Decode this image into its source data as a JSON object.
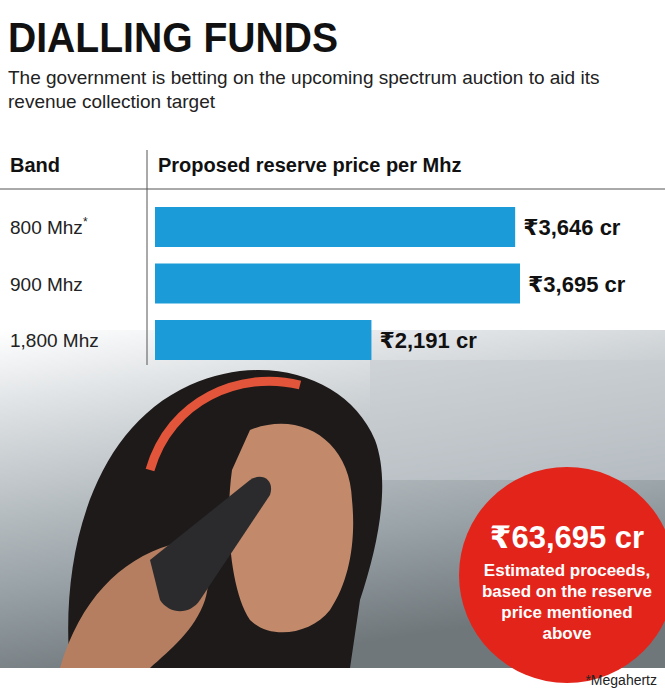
{
  "chart_data": {
    "type": "bar",
    "orientation": "horizontal",
    "title": "DIALLING FUNDS",
    "subtitle": "The government is betting on the upcoming spectrum auction to aid its revenue collection target",
    "category_header": "Band",
    "value_header": "Proposed reserve price per Mhz",
    "categories": [
      "800 Mhz*",
      "900 Mhz",
      "1,800 Mhz"
    ],
    "values": [
      3646,
      3695,
      2191
    ],
    "value_labels": [
      "₹3,646 cr",
      "₹3,695 cr",
      "₹2,191 cr"
    ],
    "color": "#1b9bd7",
    "xlim": [
      0,
      3700
    ],
    "data_labels": true,
    "tick_labels": false,
    "grid": false,
    "annotations": [
      "₹63,695 cr",
      "Estimated proceeds, based on the reserve price mentioned above"
    ],
    "footnote": "*Megahertz"
  }
}
